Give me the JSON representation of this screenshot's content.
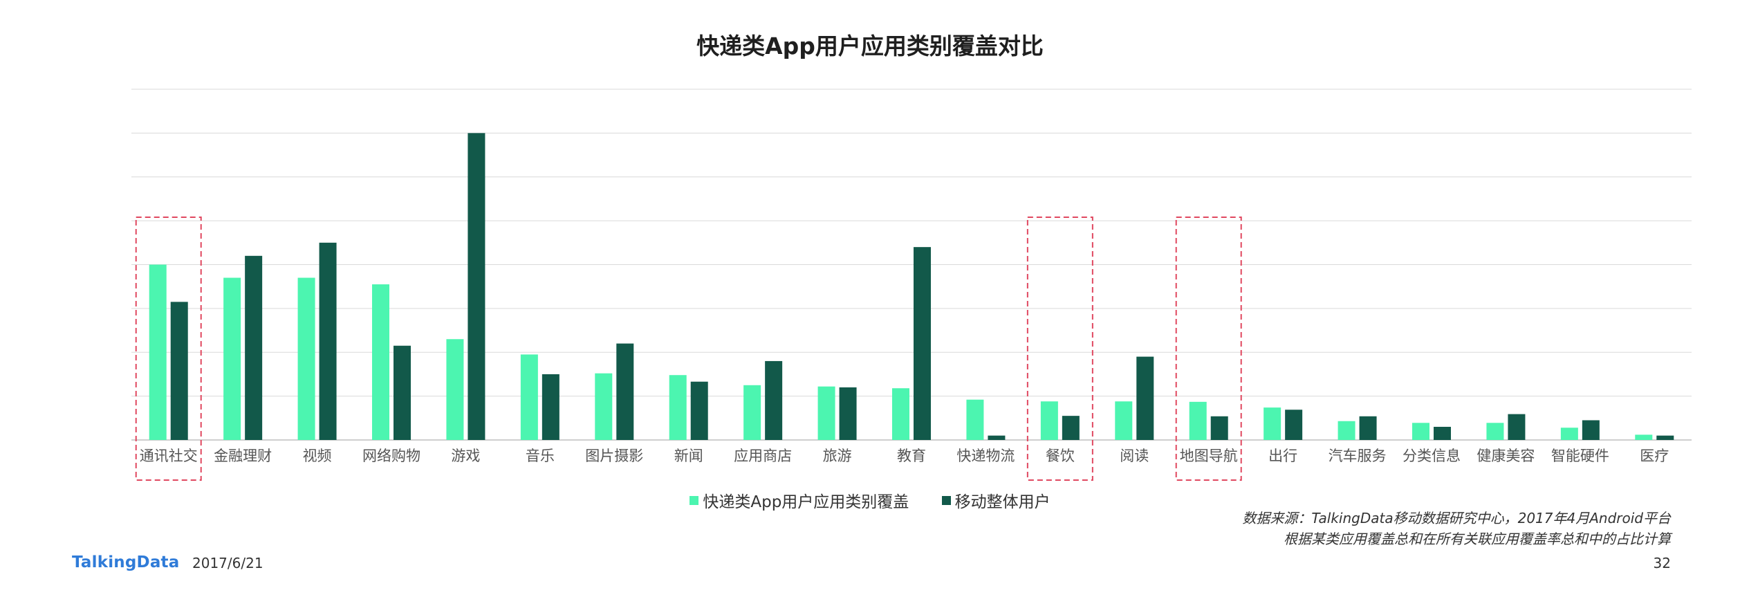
{
  "page": {
    "logo_text": "TalkingData",
    "date": "2017/6/21",
    "page_number": "32",
    "source_line1": "数据来源：TalkingData移动数据研究中心，2017年4月Android平台",
    "source_line2": "根据某类应用覆盖总和在所有关联应用覆盖率总和中的占比计算"
  },
  "colors": {
    "series_1": "#4cf5b0",
    "series_2": "#12594a",
    "highlight_box": "#e0475f",
    "grid": "#d9d9d9"
  },
  "chart_data": {
    "type": "bar",
    "title": "快递类App用户应用类别覆盖对比",
    "xlabel": "",
    "ylabel": "",
    "y_axis_labels_shown": false,
    "grid": true,
    "ylim": [
      0,
      8
    ],
    "legend_position": "bottom-center",
    "categories": [
      "通讯社交",
      "金融理财",
      "视频",
      "网络购物",
      "游戏",
      "音乐",
      "图片摄影",
      "新闻",
      "应用商店",
      "旅游",
      "教育",
      "快递物流",
      "餐饮",
      "阅读",
      "地图导航",
      "出行",
      "汽车服务",
      "分类信息",
      "健康美容",
      "智能硬件",
      "医疗"
    ],
    "series": [
      {
        "name": "快递类App用户应用类别覆盖",
        "values": [
          4.0,
          3.7,
          3.7,
          3.55,
          2.3,
          1.95,
          1.52,
          1.48,
          1.25,
          1.22,
          1.18,
          0.92,
          0.88,
          0.88,
          0.87,
          0.74,
          0.43,
          0.39,
          0.39,
          0.28,
          0.12
        ]
      },
      {
        "name": "移动整体用户",
        "values": [
          3.15,
          4.2,
          4.5,
          2.15,
          7.0,
          1.5,
          2.2,
          1.33,
          1.8,
          1.2,
          4.4,
          0.1,
          0.55,
          1.9,
          0.54,
          0.69,
          0.54,
          0.3,
          0.59,
          0.45,
          0.1
        ]
      }
    ],
    "highlighted_categories": [
      "通讯社交",
      "餐饮",
      "地图导航"
    ]
  }
}
